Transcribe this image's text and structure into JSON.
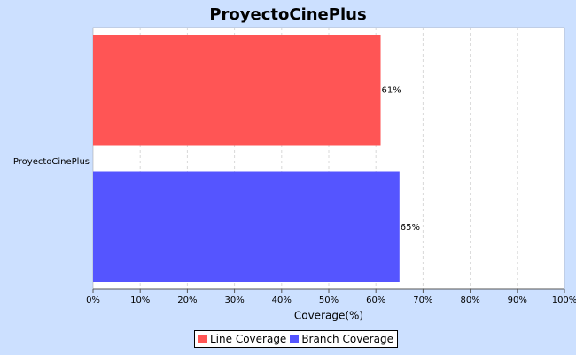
{
  "chart_data": {
    "type": "bar",
    "orientation": "horizontal",
    "title": "ProyectoCinePlus",
    "categories": [
      "ProyectoCinePlus"
    ],
    "series": [
      {
        "name": "Line Coverage",
        "values": [
          61
        ],
        "label": "61%",
        "color": "#ff5555"
      },
      {
        "name": "Branch Coverage",
        "values": [
          65
        ],
        "label": "65%",
        "color": "#5555ff"
      }
    ],
    "xlabel": "Coverage(%)",
    "ylabel": "",
    "xlim": [
      0,
      100
    ],
    "xticks": [
      "0%",
      "10%",
      "20%",
      "30%",
      "40%",
      "50%",
      "60%",
      "70%",
      "80%",
      "90%",
      "100%"
    ],
    "grid": true,
    "legend_position": "bottom"
  }
}
